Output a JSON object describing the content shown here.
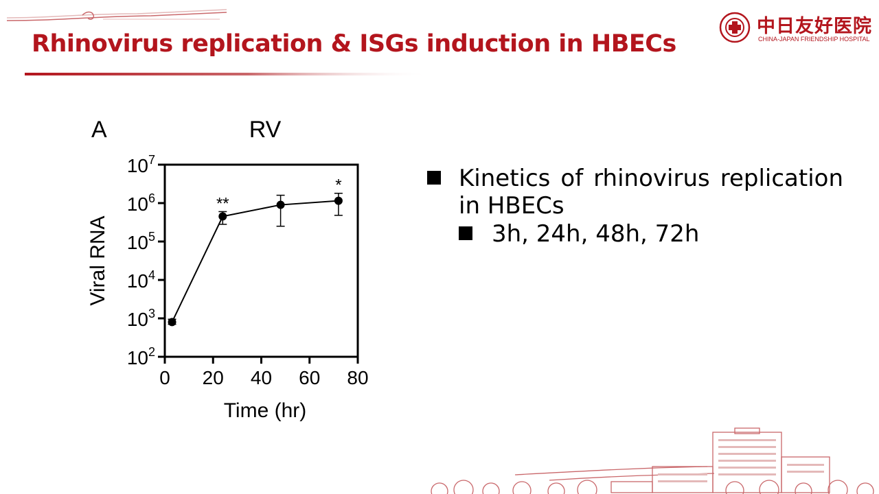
{
  "colors": {
    "brand_red": "#b3151d",
    "ink": "#000000",
    "deco_red": "#c9676a",
    "deco_light": "#e4b9b9"
  },
  "header": {
    "title": "Rhinovirus replication & ISGs induction in HBECs"
  },
  "logo": {
    "name_cn": "中日友好医院",
    "name_en": "CHINA-JAPAN FRIENDSHIP HOSPITAL",
    "icon": "hospital-emblem-icon"
  },
  "bullets": {
    "item1": "Kinetics of rhinovirus replication in HBECs",
    "sub1": "3h, 24h, 48h, 72h"
  },
  "chart_data": {
    "type": "line",
    "panel_label": "A",
    "title": "RV",
    "xlabel": "Time (hr)",
    "ylabel": "Viral RNA",
    "xlim": [
      0,
      80
    ],
    "x_ticks": [
      "0",
      "20",
      "40",
      "60",
      "80"
    ],
    "y_scale": "log",
    "ylim": [
      100,
      10000000
    ],
    "y_tick_bases": [
      "10",
      "10",
      "10",
      "10",
      "10",
      "10"
    ],
    "y_tick_exponents": [
      "2",
      "3",
      "4",
      "5",
      "6",
      "7"
    ],
    "grid": false,
    "series": [
      {
        "x": [
          3,
          24,
          48,
          72
        ],
        "y": [
          800,
          450000,
          900000,
          1150000
        ],
        "error_low": [
          700,
          280000,
          250000,
          480000
        ],
        "error_high": [
          950,
          600000,
          1600000,
          1800000
        ],
        "annotations": [
          "",
          "**",
          "",
          "*"
        ]
      }
    ]
  }
}
